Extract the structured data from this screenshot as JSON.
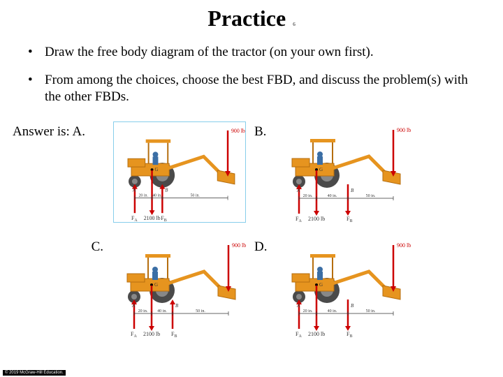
{
  "title": "Practice",
  "title_sub": "6",
  "bullets": [
    "Draw the free body diagram of the tractor (on your own first).",
    "From among the choices, choose the best FBD, and discuss the problem(s) with the other FBDs."
  ],
  "answer_prefix": "Answer is: ",
  "answer_letter": "A.",
  "options": {
    "A": {
      "label": "A.",
      "boxed": true
    },
    "B": {
      "label": "B.",
      "boxed": false
    },
    "C": {
      "label": "C.",
      "boxed": false
    },
    "D": {
      "label": "D.",
      "boxed": false
    }
  },
  "diagram": {
    "load_label": "900 lb",
    "load_color": "#cc0000",
    "weight_label": "2100 lb",
    "reaction_a": "F",
    "reaction_a_sub": "A",
    "reaction_b": "F",
    "reaction_b_sub": "B",
    "point_a": "A",
    "point_b": "B",
    "point_g": "G",
    "dim1": "20 in.",
    "dim2": "40 in.",
    "dim3": "50 in.",
    "tractor_body": "#e6941f",
    "tractor_dark": "#b56e0f",
    "wheel_color": "#4a4a4a",
    "driver_color": "#3b6ea5",
    "arrow_up_color": "#cc0000",
    "arrow_down_color": "#cc0000",
    "dim_line_color": "#333333",
    "text_color": "#333333"
  },
  "variants": {
    "A": {
      "fa_arrow": "up",
      "fb_arrow": "up",
      "load_arrow": true,
      "weight_arrow": true
    },
    "B": {
      "fa_arrow": "up",
      "fb_arrow": "down",
      "load_arrow": true,
      "weight_arrow": true,
      "b_far": true
    },
    "C": {
      "fa_arrow": "up",
      "fb_arrow": "up",
      "load_arrow": true,
      "weight_arrow": true,
      "b_mid": true
    },
    "D": {
      "fa_arrow": "up",
      "fb_arrow": "down",
      "load_arrow": true,
      "weight_arrow": true,
      "b_far": true
    }
  },
  "footer": "© 2019 McGraw-Hill Education."
}
